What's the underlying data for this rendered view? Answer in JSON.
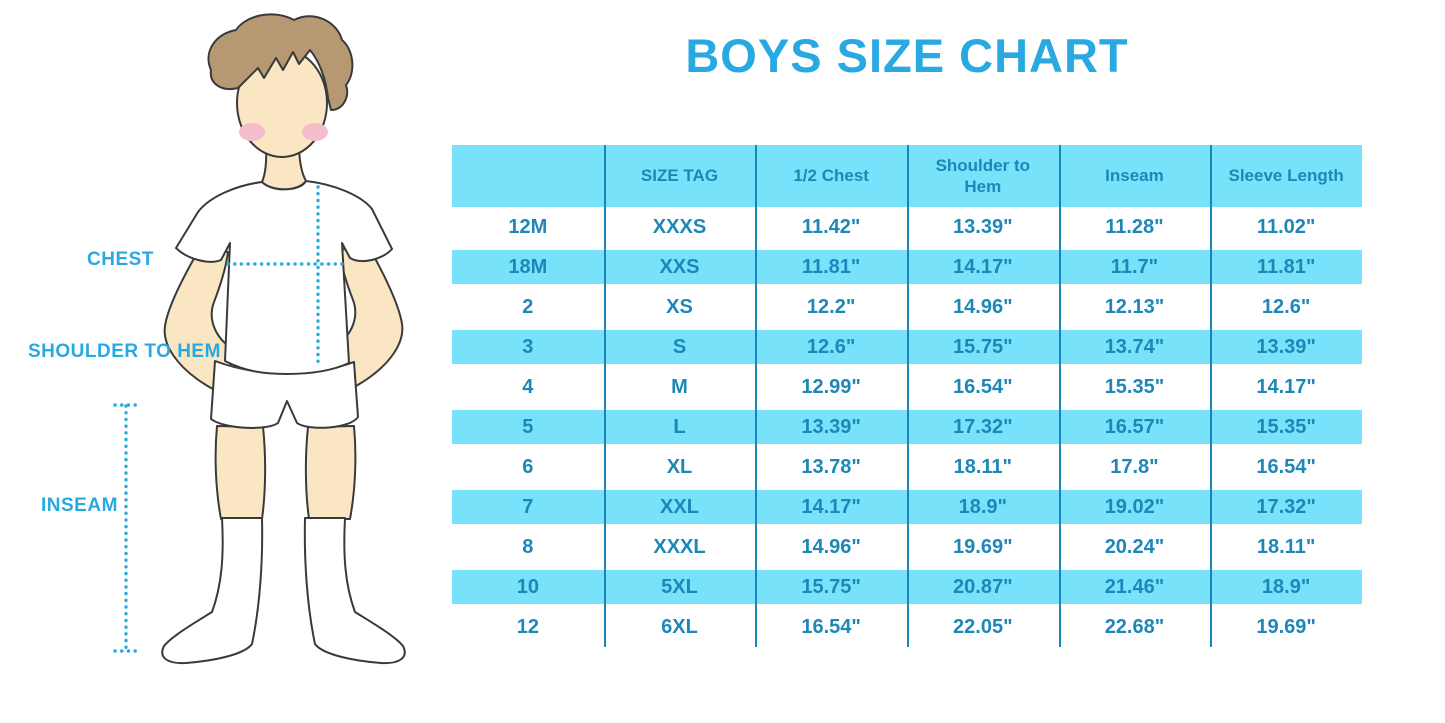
{
  "page": {
    "title": "BOYS SIZE CHART"
  },
  "diagram": {
    "labels": {
      "chest": "CHEST",
      "shoulder_to_hem": "SHOULDER TO HEM",
      "inseam": "INSEAM"
    }
  },
  "chart_data": {
    "type": "table",
    "title": "BOYS SIZE CHART",
    "columns": [
      "",
      "SIZE TAG",
      "1/2 Chest",
      "Shoulder to Hem",
      "Inseam",
      "Sleeve Length"
    ],
    "rows": [
      [
        "12M",
        "XXXS",
        "11.42\"",
        "13.39\"",
        "11.28\"",
        "11.02\""
      ],
      [
        "18M",
        "XXS",
        "11.81\"",
        "14.17\"",
        "11.7\"",
        "11.81\""
      ],
      [
        "2",
        "XS",
        "12.2\"",
        "14.96\"",
        "12.13\"",
        "12.6\""
      ],
      [
        "3",
        "S",
        "12.6\"",
        "15.75\"",
        "13.74\"",
        "13.39\""
      ],
      [
        "4",
        "M",
        "12.99\"",
        "16.54\"",
        "15.35\"",
        "14.17\""
      ],
      [
        "5",
        "L",
        "13.39\"",
        "17.32\"",
        "16.57\"",
        "15.35\""
      ],
      [
        "6",
        "XL",
        "13.78\"",
        "18.11\"",
        "17.8\"",
        "16.54\""
      ],
      [
        "7",
        "XXL",
        "14.17\"",
        "18.9\"",
        "19.02\"",
        "17.32\""
      ],
      [
        "8",
        "XXXL",
        "14.96\"",
        "19.69\"",
        "20.24\"",
        "18.11\""
      ],
      [
        "10",
        "5XL",
        "15.75\"",
        "20.87\"",
        "21.46\"",
        "18.9\""
      ],
      [
        "12",
        "6XL",
        "16.54\"",
        "22.05\"",
        "22.68\"",
        "19.69\""
      ]
    ],
    "layout": {
      "striped_rows": true,
      "stripe_pattern": "alternating white and light-cyan starting white after cyan header",
      "grid": "vertical column dividers only"
    }
  },
  "colors": {
    "accent_blue": "#29A9E1",
    "table_text": "#1D87B8",
    "row_band": "#79E2FB",
    "column_divider": "#1886B6",
    "dotted_line": "#29ABE2",
    "skin": "#FAE6C2",
    "hair": "#B69873",
    "blush": "#F5BDCB",
    "outline": "#3A3A3A"
  }
}
